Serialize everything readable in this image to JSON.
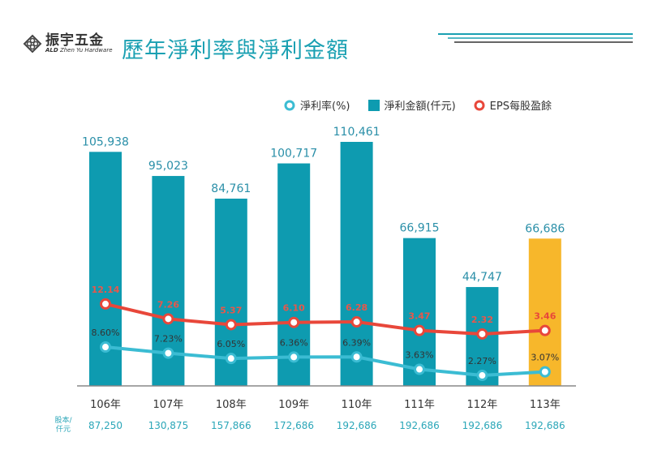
{
  "header": {
    "logo_cn": "振宇五金",
    "logo_en": "Zhen Yu Hardware",
    "logo_mark": "ALD",
    "title": "歷年淨利率與淨利金額"
  },
  "legend": [
    {
      "label": "淨利率(%)",
      "color": "#3bbcd3"
    },
    {
      "label": "淨利金額(仟元)",
      "color": "#0e9bb0"
    },
    {
      "label": "EPS每股盈餘",
      "color": "#e8473a"
    }
  ],
  "share_capital_label": "股本/仟元",
  "share_capital_label_lines": [
    "股本/",
    "仟元"
  ],
  "chart_data": {
    "type": "bar+line",
    "title": "歷年淨利率與淨利金額",
    "categories": [
      "106年",
      "107年",
      "108年",
      "109年",
      "110年",
      "111年",
      "112年",
      "113年"
    ],
    "series": [
      {
        "name": "淨利金額(仟元)",
        "type": "bar",
        "values": [
          105938,
          95023,
          84761,
          100717,
          110461,
          66915,
          44747,
          66686
        ],
        "labels": [
          "105,938",
          "95,023",
          "84,761",
          "100,717",
          "110,461",
          "66,915",
          "44,747",
          "66,686"
        ],
        "color": "#0e9bb0",
        "highlight_color": "#f7b72b",
        "highlight_index": 7
      },
      {
        "name": "淨利率(%)",
        "type": "line",
        "values": [
          8.6,
          7.23,
          6.05,
          6.36,
          6.39,
          3.63,
          2.27,
          3.07
        ],
        "labels": [
          "8.60%",
          "7.23%",
          "6.05%",
          "6.36%",
          "6.39%",
          "3.63%",
          "2.27%",
          "3.07%"
        ],
        "color": "#3bbcd3"
      },
      {
        "name": "EPS每股盈餘",
        "type": "line",
        "values": [
          12.14,
          7.26,
          5.37,
          6.1,
          6.28,
          3.47,
          2.32,
          3.46
        ],
        "labels": [
          "12.14",
          "7.26",
          "5.37",
          "6.10",
          "6.28",
          "3.47",
          "2.32",
          "3.46"
        ],
        "color": "#e8473a"
      }
    ],
    "share_capital": [
      "87,250",
      "130,875",
      "157,866",
      "172,686",
      "192,686",
      "192,686",
      "192,686",
      "192,686"
    ],
    "legend_position": "top-right",
    "grid": false
  }
}
